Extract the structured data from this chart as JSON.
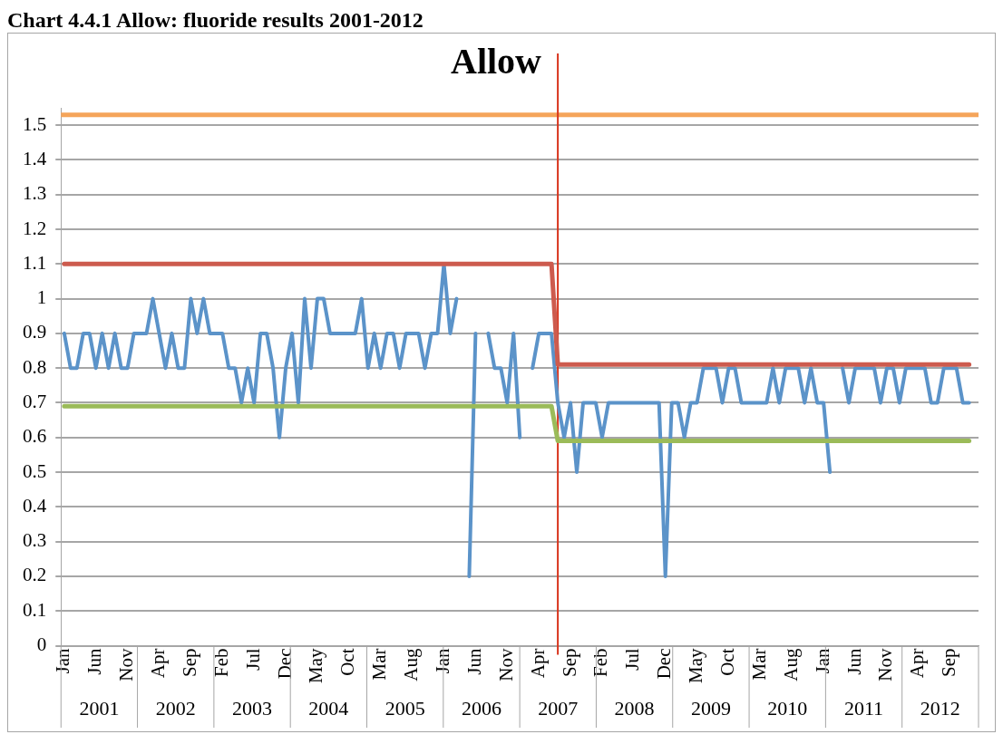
{
  "chart_data": {
    "type": "line",
    "title": "Allow",
    "marker": "none",
    "line_style": "solid",
    "legend": false,
    "grid": "y",
    "x": [
      "2001-01",
      "2001-02",
      "2001-03",
      "2001-04",
      "2001-05",
      "2001-06",
      "2001-07",
      "2001-08",
      "2001-09",
      "2001-10",
      "2001-11",
      "2001-12",
      "2002-01",
      "2002-02",
      "2002-03",
      "2002-04",
      "2002-05",
      "2002-06",
      "2002-07",
      "2002-08",
      "2002-09",
      "2002-10",
      "2002-11",
      "2002-12",
      "2003-01",
      "2003-02",
      "2003-03",
      "2003-04",
      "2003-05",
      "2003-06",
      "2003-07",
      "2003-08",
      "2003-09",
      "2003-10",
      "2003-11",
      "2003-12",
      "2004-01",
      "2004-02",
      "2004-03",
      "2004-04",
      "2004-05",
      "2004-06",
      "2004-07",
      "2004-08",
      "2004-09",
      "2004-10",
      "2004-11",
      "2004-12",
      "2005-01",
      "2005-02",
      "2005-03",
      "2005-04",
      "2005-05",
      "2005-06",
      "2005-07",
      "2005-08",
      "2005-09",
      "2005-10",
      "2005-11",
      "2005-12",
      "2006-01",
      "2006-02",
      "2006-03",
      "2006-04",
      "2006-05",
      "2006-06",
      "2006-07",
      "2006-08",
      "2006-09",
      "2006-10",
      "2006-11",
      "2006-12",
      "2007-01",
      "2007-02",
      "2007-03",
      "2007-04",
      "2007-05",
      "2007-06",
      "2007-07",
      "2007-08",
      "2007-09",
      "2007-10",
      "2007-11",
      "2007-12",
      "2008-01",
      "2008-02",
      "2008-03",
      "2008-04",
      "2008-05",
      "2008-06",
      "2008-07",
      "2008-08",
      "2008-09",
      "2008-10",
      "2008-11",
      "2008-12",
      "2009-01",
      "2009-02",
      "2009-03",
      "2009-04",
      "2009-05",
      "2009-06",
      "2009-07",
      "2009-08",
      "2009-09",
      "2009-10",
      "2009-11",
      "2009-12",
      "2010-01",
      "2010-02",
      "2010-03",
      "2010-04",
      "2010-05",
      "2010-06",
      "2010-07",
      "2010-08",
      "2010-09",
      "2010-10",
      "2010-11",
      "2010-12",
      "2011-01",
      "2011-02",
      "2011-03",
      "2011-04",
      "2011-05",
      "2011-06",
      "2011-07",
      "2011-08",
      "2011-09",
      "2011-10",
      "2011-11",
      "2011-12",
      "2012-01",
      "2012-02",
      "2012-03",
      "2012-04",
      "2012-05",
      "2012-06",
      "2012-07",
      "2012-08",
      "2012-09",
      "2012-10",
      "2012-11",
      "2012-12"
    ],
    "series": [
      {
        "color": "#5b93c9",
        "values": [
          0.9,
          0.8,
          0.8,
          0.9,
          0.9,
          0.8,
          0.9,
          0.8,
          0.9,
          0.8,
          0.8,
          0.9,
          0.9,
          0.9,
          1.0,
          0.9,
          0.8,
          0.9,
          0.8,
          0.8,
          1.0,
          0.9,
          1.0,
          0.9,
          0.9,
          0.9,
          0.8,
          0.8,
          0.7,
          0.8,
          0.7,
          0.9,
          0.9,
          0.8,
          0.6,
          0.8,
          0.9,
          0.7,
          1.0,
          0.8,
          1.0,
          1.0,
          0.9,
          0.9,
          0.9,
          0.9,
          0.9,
          1.0,
          0.8,
          0.9,
          0.8,
          0.9,
          0.9,
          0.8,
          0.9,
          0.9,
          0.9,
          0.8,
          0.9,
          0.9,
          1.1,
          0.9,
          1.0,
          null,
          0.2,
          0.9,
          null,
          0.9,
          0.8,
          0.8,
          0.7,
          0.9,
          0.6,
          null,
          0.8,
          0.9,
          0.9,
          0.9,
          0.7,
          0.6,
          0.7,
          0.5,
          0.7,
          0.7,
          0.7,
          0.6,
          0.7,
          0.7,
          0.7,
          0.7,
          0.7,
          0.7,
          0.7,
          0.7,
          0.7,
          0.2,
          0.7,
          0.7,
          0.6,
          0.7,
          0.7,
          0.8,
          0.8,
          0.8,
          0.7,
          0.8,
          0.8,
          0.7,
          0.7,
          0.7,
          0.7,
          0.7,
          0.8,
          0.7,
          0.8,
          0.8,
          0.8,
          0.7,
          0.8,
          0.7,
          0.7,
          0.5,
          null,
          0.8,
          0.7,
          0.8,
          0.8,
          0.8,
          0.8,
          0.7,
          0.8,
          0.8,
          0.7,
          0.8,
          0.8,
          0.8,
          0.8,
          0.7,
          0.7,
          0.8,
          0.8,
          0.8,
          0.7,
          0.7
        ]
      },
      {
        "color": "#cd5b4e",
        "values": [
          1.1,
          1.1,
          1.1,
          1.1,
          1.1,
          1.1,
          1.1,
          1.1,
          1.1,
          1.1,
          1.1,
          1.1,
          1.1,
          1.1,
          1.1,
          1.1,
          1.1,
          1.1,
          1.1,
          1.1,
          1.1,
          1.1,
          1.1,
          1.1,
          1.1,
          1.1,
          1.1,
          1.1,
          1.1,
          1.1,
          1.1,
          1.1,
          1.1,
          1.1,
          1.1,
          1.1,
          1.1,
          1.1,
          1.1,
          1.1,
          1.1,
          1.1,
          1.1,
          1.1,
          1.1,
          1.1,
          1.1,
          1.1,
          1.1,
          1.1,
          1.1,
          1.1,
          1.1,
          1.1,
          1.1,
          1.1,
          1.1,
          1.1,
          1.1,
          1.1,
          1.1,
          1.1,
          1.1,
          1.1,
          1.1,
          1.1,
          1.1,
          1.1,
          1.1,
          1.1,
          1.1,
          1.1,
          1.1,
          1.1,
          1.1,
          1.1,
          1.1,
          1.1,
          0.81,
          0.81,
          0.81,
          0.81,
          0.81,
          0.81,
          0.81,
          0.81,
          0.81,
          0.81,
          0.81,
          0.81,
          0.81,
          0.81,
          0.81,
          0.81,
          0.81,
          0.81,
          0.81,
          0.81,
          0.81,
          0.81,
          0.81,
          0.81,
          0.81,
          0.81,
          0.81,
          0.81,
          0.81,
          0.81,
          0.81,
          0.81,
          0.81,
          0.81,
          0.81,
          0.81,
          0.81,
          0.81,
          0.81,
          0.81,
          0.81,
          0.81,
          0.81,
          0.81,
          0.81,
          0.81,
          0.81,
          0.81,
          0.81,
          0.81,
          0.81,
          0.81,
          0.81,
          0.81,
          0.81,
          0.81,
          0.81,
          0.81,
          0.81,
          0.81,
          0.81,
          0.81,
          0.81,
          0.81,
          0.81,
          0.81
        ]
      },
      {
        "color": "#9bbb59",
        "values": [
          0.69,
          0.69,
          0.69,
          0.69,
          0.69,
          0.69,
          0.69,
          0.69,
          0.69,
          0.69,
          0.69,
          0.69,
          0.69,
          0.69,
          0.69,
          0.69,
          0.69,
          0.69,
          0.69,
          0.69,
          0.69,
          0.69,
          0.69,
          0.69,
          0.69,
          0.69,
          0.69,
          0.69,
          0.69,
          0.69,
          0.69,
          0.69,
          0.69,
          0.69,
          0.69,
          0.69,
          0.69,
          0.69,
          0.69,
          0.69,
          0.69,
          0.69,
          0.69,
          0.69,
          0.69,
          0.69,
          0.69,
          0.69,
          0.69,
          0.69,
          0.69,
          0.69,
          0.69,
          0.69,
          0.69,
          0.69,
          0.69,
          0.69,
          0.69,
          0.69,
          0.69,
          0.69,
          0.69,
          0.69,
          0.69,
          0.69,
          0.69,
          0.69,
          0.69,
          0.69,
          0.69,
          0.69,
          0.69,
          0.69,
          0.69,
          0.69,
          0.69,
          0.69,
          0.59,
          0.59,
          0.59,
          0.59,
          0.59,
          0.59,
          0.59,
          0.59,
          0.59,
          0.59,
          0.59,
          0.59,
          0.59,
          0.59,
          0.59,
          0.59,
          0.59,
          0.59,
          0.59,
          0.59,
          0.59,
          0.59,
          0.59,
          0.59,
          0.59,
          0.59,
          0.59,
          0.59,
          0.59,
          0.59,
          0.59,
          0.59,
          0.59,
          0.59,
          0.59,
          0.59,
          0.59,
          0.59,
          0.59,
          0.59,
          0.59,
          0.59,
          0.59,
          0.59,
          0.59,
          0.59,
          0.59,
          0.59,
          0.59,
          0.59,
          0.59,
          0.59,
          0.59,
          0.59,
          0.59,
          0.59,
          0.59,
          0.59,
          0.59,
          0.59,
          0.59,
          0.59,
          0.59,
          0.59,
          0.59,
          0.59
        ]
      }
    ],
    "xlim": [
      "2000-12-16",
      "2013-01-16"
    ],
    "xticks": [
      {
        "value": "2001-01",
        "label": "Jan"
      },
      {
        "value": "2001-06",
        "label": "Jun"
      },
      {
        "value": "2001-11",
        "label": "Nov"
      },
      {
        "value": "2002-04",
        "label": "Apr"
      },
      {
        "value": "2002-09",
        "label": "Sep"
      },
      {
        "value": "2003-02",
        "label": "Feb"
      },
      {
        "value": "2003-07",
        "label": "Jul"
      },
      {
        "value": "2003-12",
        "label": "Dec"
      },
      {
        "value": "2004-05",
        "label": "May"
      },
      {
        "value": "2004-10",
        "label": "Oct"
      },
      {
        "value": "2005-03",
        "label": "Mar"
      },
      {
        "value": "2005-08",
        "label": "Aug"
      },
      {
        "value": "2006-01",
        "label": "Jan"
      },
      {
        "value": "2006-06",
        "label": "Jun"
      },
      {
        "value": "2006-11",
        "label": "Nov"
      },
      {
        "value": "2007-04",
        "label": "Apr"
      },
      {
        "value": "2007-09",
        "label": "Sep"
      },
      {
        "value": "2008-02",
        "label": "Feb"
      },
      {
        "value": "2008-07",
        "label": "Jul"
      },
      {
        "value": "2008-12",
        "label": "Dec"
      },
      {
        "value": "2009-05",
        "label": "May"
      },
      {
        "value": "2009-10",
        "label": "Oct"
      },
      {
        "value": "2010-03",
        "label": "Mar"
      },
      {
        "value": "2010-08",
        "label": "Aug"
      },
      {
        "value": "2011-01",
        "label": "Jan"
      },
      {
        "value": "2011-06",
        "label": "Jun"
      },
      {
        "value": "2011-11",
        "label": "Nov"
      },
      {
        "value": "2012-04",
        "label": "Apr"
      },
      {
        "value": "2012-09",
        "label": "Sep"
      }
    ],
    "ylim": [
      0,
      1.55
    ],
    "yticks": [
      0,
      0.1,
      0.2,
      0.3,
      0.4,
      0.5,
      0.6,
      0.7,
      0.8,
      0.9,
      1,
      1.1,
      1.2,
      1.3,
      1.4,
      1.5
    ],
    "ref_lines": [
      {
        "axis": "y",
        "value": 1.53,
        "color": "#f5a55a"
      },
      {
        "axis": "x",
        "value": "2007-07",
        "color": "#d9341c"
      }
    ],
    "subtitle": "Chart 4.4.1 Allow: fluoride results 2001-2012",
    "annotations": [
      "2001",
      "2002",
      "2003",
      "2004",
      "2005",
      "2006",
      "2007",
      "2008",
      "2009",
      "2010",
      "2011",
      "2012"
    ]
  }
}
